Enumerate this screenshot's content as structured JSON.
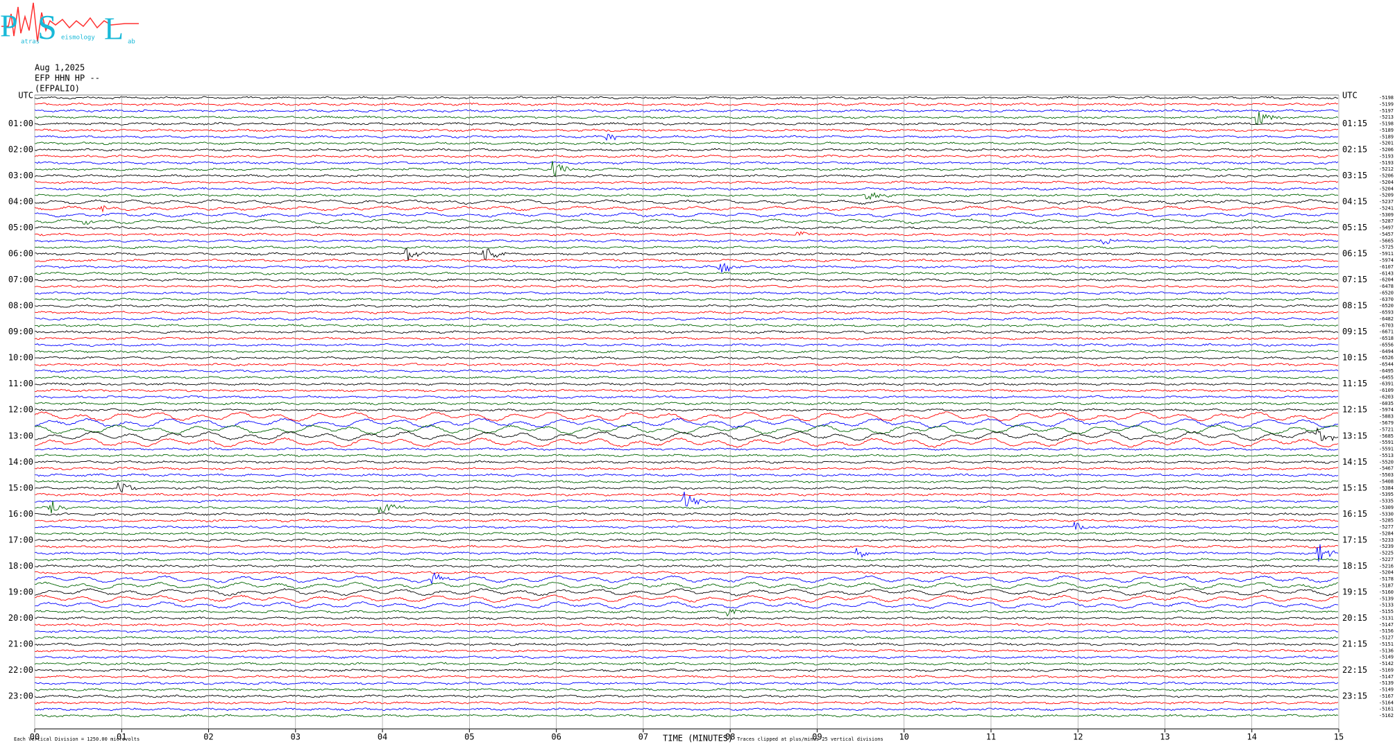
{
  "logo": {
    "letters": [
      "P",
      "S",
      "L"
    ],
    "words": [
      "atras",
      "eismology",
      "ab"
    ]
  },
  "header": {
    "date": "Aug 1,2025",
    "channel": "EFP HHN HP --",
    "station": "(EFPALIO)"
  },
  "helicorder": {
    "left_labels": [
      "UTC",
      "01:00",
      "02:00",
      "03:00",
      "04:00",
      "05:00",
      "06:00",
      "07:00",
      "08:00",
      "09:00",
      "10:00",
      "11:00",
      "12:00",
      "13:00",
      "14:00",
      "15:00",
      "16:00",
      "17:00",
      "18:00",
      "19:00",
      "20:00",
      "21:00",
      "22:00",
      "23:00"
    ],
    "right_labels": [
      "UTC",
      "01:15",
      "02:15",
      "03:15",
      "04:15",
      "05:15",
      "06:15",
      "07:15",
      "08:15",
      "09:15",
      "10:15",
      "11:15",
      "12:15",
      "13:15",
      "14:15",
      "15:15",
      "16:15",
      "17:15",
      "18:15",
      "19:15",
      "20:15",
      "21:15",
      "22:15",
      "23:15"
    ],
    "trace_offsets": [
      -5198,
      -5199,
      -5197,
      -5213,
      -5198,
      -5189,
      -5189,
      -5201,
      -5206,
      -5193,
      -5193,
      -5212,
      -5206,
      -5204,
      -5204,
      -5209,
      -5237,
      -5241,
      -5309,
      -5287,
      -5497,
      -5457,
      -5665,
      -5725,
      -5911,
      -5974,
      -6107,
      -6143,
      -6204,
      -6478,
      -6520,
      -6370,
      -6520,
      -6593,
      -6482,
      -6703,
      -6671,
      -6518,
      -6556,
      -6494,
      -6526,
      -6544,
      -6495,
      -6455,
      -6391,
      -6109,
      -6203,
      -6035,
      -5974,
      -5883,
      -5679,
      -5721,
      -5685,
      -5591,
      -5591,
      -5513,
      -5520,
      -5467,
      -5503,
      -5408,
      -5384,
      -5395,
      -5335,
      -5309,
      -5330,
      -5285,
      -5277,
      -5284,
      -5233,
      -5239,
      -5225,
      -5227,
      -5216,
      -5204,
      -5178,
      -5187,
      -5160,
      -5139,
      -5133,
      -5155,
      -5131,
      -5147,
      -5156,
      -5127,
      -5151,
      -5136,
      -5149,
      -5142,
      -5169,
      -5147,
      -5139,
      -5149,
      -5167,
      -5164,
      -5161,
      -5162
    ],
    "x_ticks": [
      "00",
      "01",
      "02",
      "03",
      "04",
      "05",
      "06",
      "07",
      "08",
      "09",
      "10",
      "11",
      "12",
      "13",
      "14",
      "15"
    ],
    "x_label": "TIME (MINUTES)",
    "scale_note": "Each Vertical Division = 1250.00 microvolts",
    "clip_note": "Traces clipped at plus/minus 25 vertical divisions",
    "trace_colors": [
      "#000000",
      "#ff0000",
      "#0000ff",
      "#006400"
    ]
  }
}
